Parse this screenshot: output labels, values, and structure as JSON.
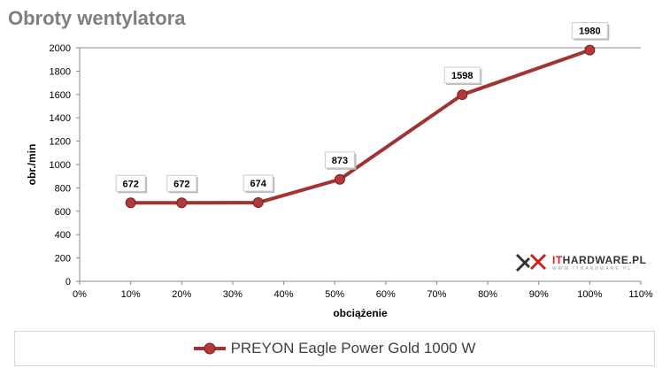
{
  "chart_data": {
    "type": "line",
    "title": "Obroty wentylatora",
    "xlabel": "obciążenie",
    "ylabel": "obr./min",
    "x": [
      10,
      20,
      35,
      51,
      75,
      100
    ],
    "series": [
      {
        "name": "PREYON Eagle Power Gold 1000 W",
        "values": [
          672,
          672,
          674,
          873,
          1598,
          1980
        ],
        "color": "#a33333"
      }
    ],
    "xlim": [
      0,
      110
    ],
    "ylim": [
      0,
      2000
    ],
    "xticks": [
      "0%",
      "10%",
      "20%",
      "30%",
      "40%",
      "50%",
      "60%",
      "70%",
      "80%",
      "90%",
      "100%",
      "110%"
    ],
    "yticks": [
      "0",
      "200",
      "400",
      "600",
      "800",
      "1000",
      "1200",
      "1400",
      "1600",
      "1800",
      "2000"
    ],
    "legend": "bottom"
  },
  "logo": {
    "name": "ITHARDWARE.PL",
    "url_text": "WWW.ITHARDWARE.PL"
  }
}
